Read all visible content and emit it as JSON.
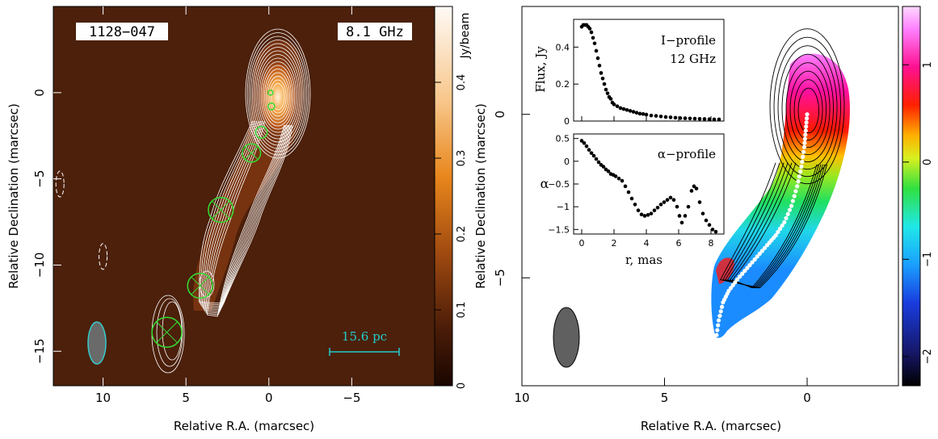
{
  "chart_data": [
    {
      "panel": "left",
      "type": "heatmap",
      "source_label": "1128−047",
      "frequency_label": "8.1 GHz",
      "xlabel": "Relative R.A. (marcsec)",
      "ylabel": "Relative Declination (marcsec)",
      "xlim": [
        13,
        -10
      ],
      "ylim": [
        -17,
        5
      ],
      "xticks": [
        10,
        5,
        0,
        -5
      ],
      "xtick_labels": [
        "10",
        "5",
        "0",
        "−5"
      ],
      "yticks": [
        0,
        -5,
        -10,
        -15
      ],
      "ytick_labels": [
        "0",
        "−5",
        "−10",
        "−15"
      ],
      "colorbar": {
        "label": "Jy/beam",
        "range": [
          0,
          0.5
        ],
        "ticks": [
          0,
          0.1,
          0.2,
          0.3,
          0.4
        ],
        "tick_labels": [
          "0",
          "0.1",
          "0.2",
          "0.3",
          "0.4"
        ],
        "colormap": "dark-brown-to-orange-to-white"
      },
      "scale_bar_label": "15.6 pc",
      "colors": {
        "contours": "#ffffff",
        "components": "#33dd33",
        "beam": "#33cccc",
        "scale_bar": "#22cccc"
      },
      "ridge": [
        {
          "x": 0.2,
          "y": 0.3
        },
        {
          "x": 0.5,
          "y": -1.8
        },
        {
          "x": 1.1,
          "y": -3.6
        },
        {
          "x": 2.2,
          "y": -5.6
        },
        {
          "x": 3.0,
          "y": -7.2
        },
        {
          "x": 3.6,
          "y": -9.0
        },
        {
          "x": 4.0,
          "y": -10.6
        },
        {
          "x": 4.2,
          "y": -11.6
        }
      ],
      "components": [
        {
          "x": -0.1,
          "y": 0.0,
          "r": 0.15
        },
        {
          "x": -0.15,
          "y": -0.8,
          "r": 0.2
        },
        {
          "x": 0.45,
          "y": -2.3,
          "r": 0.35
        },
        {
          "x": 1.05,
          "y": -3.5,
          "r": 0.55
        },
        {
          "x": 2.9,
          "y": -6.8,
          "r": 0.75
        },
        {
          "x": 4.15,
          "y": -11.2,
          "r": 0.75
        },
        {
          "x": 6.15,
          "y": -13.9,
          "r": 0.9
        }
      ],
      "negative_contours": [
        {
          "x": 12.6,
          "y": -5.3
        },
        {
          "x": 10.0,
          "y": -9.5
        }
      ]
    },
    {
      "panel": "right",
      "type": "heatmap",
      "xlabel": "Relative R.A. (marcsec)",
      "ylabel": "",
      "xlim": [
        10,
        -3.2
      ],
      "ylim": [
        -8.3,
        3.3
      ],
      "xticks": [
        10,
        5,
        0
      ],
      "xtick_labels": [
        "10",
        "5",
        "0"
      ],
      "yticks": [
        0,
        -5
      ],
      "ytick_labels": [
        "0",
        "−5"
      ],
      "colorbar": {
        "label": "",
        "range": [
          -2.3,
          1.6
        ],
        "ticks": [
          -2,
          -1,
          0,
          1
        ],
        "tick_labels": [
          "−2",
          "−1",
          "0",
          "1"
        ],
        "colormap": "spectral-index-rainbow"
      },
      "ridge_points": [
        [
          0,
          0
        ],
        [
          0.05,
          -0.5
        ],
        [
          0.1,
          -1
        ],
        [
          0.2,
          -1.6
        ],
        [
          0.35,
          -2.2
        ],
        [
          0.55,
          -2.8
        ],
        [
          0.8,
          -3.3
        ],
        [
          1.1,
          -3.7
        ],
        [
          1.4,
          -4.0
        ],
        [
          1.75,
          -4.35
        ],
        [
          2.1,
          -4.7
        ],
        [
          2.45,
          -5.05
        ],
        [
          2.75,
          -5.4
        ],
        [
          2.95,
          -5.75
        ],
        [
          3.1,
          -6.3
        ],
        [
          3.2,
          -6.9
        ],
        [
          3.3,
          -7.5
        ]
      ],
      "insets": [
        {
          "type": "scatter",
          "title_lines": [
            "I−profile",
            "12 GHz"
          ],
          "ylabel": "Flux, Jy",
          "xlabel": "",
          "xlim": [
            -0.5,
            8.8
          ],
          "ylim": [
            0,
            0.55
          ],
          "yticks": [
            0,
            0.2,
            0.4
          ],
          "ytick_labels": [
            "0",
            "0.2",
            "0.4"
          ],
          "x": [
            0,
            0.1,
            0.2,
            0.3,
            0.4,
            0.5,
            0.6,
            0.7,
            0.8,
            0.9,
            1.0,
            1.1,
            1.2,
            1.3,
            1.4,
            1.5,
            1.6,
            1.7,
            1.8,
            1.9,
            2.0,
            2.2,
            2.4,
            2.6,
            2.8,
            3.0,
            3.2,
            3.4,
            3.6,
            3.8,
            4.0,
            4.3,
            4.6,
            4.9,
            5.2,
            5.5,
            5.8,
            6.1,
            6.4,
            6.7,
            7.0,
            7.3,
            7.6,
            7.9,
            8.2,
            8.5
          ],
          "y": [
            0.51,
            0.52,
            0.52,
            0.52,
            0.51,
            0.5,
            0.48,
            0.45,
            0.42,
            0.38,
            0.34,
            0.3,
            0.26,
            0.23,
            0.2,
            0.17,
            0.15,
            0.13,
            0.12,
            0.1,
            0.09,
            0.08,
            0.07,
            0.065,
            0.06,
            0.055,
            0.05,
            0.045,
            0.04,
            0.038,
            0.035,
            0.03,
            0.028,
            0.025,
            0.022,
            0.02,
            0.018,
            0.016,
            0.015,
            0.014,
            0.013,
            0.012,
            0.011,
            0.01,
            0.009,
            0.009
          ]
        },
        {
          "type": "scatter",
          "title_lines": [
            "α−profile"
          ],
          "ylabel": "α",
          "xlabel": "r, mas",
          "xlim": [
            -0.5,
            8.8
          ],
          "ylim": [
            -1.6,
            0.6
          ],
          "xticks": [
            0,
            2,
            4,
            6,
            8
          ],
          "xtick_labels": [
            "0",
            "2",
            "4",
            "6",
            "8"
          ],
          "yticks": [
            0.5,
            0,
            -0.5,
            -1,
            -1.5
          ],
          "ytick_labels": [
            "0.5",
            "0",
            "−0.5",
            "−1",
            "−1.5"
          ],
          "x": [
            0,
            0.15,
            0.3,
            0.45,
            0.6,
            0.75,
            0.9,
            1.05,
            1.2,
            1.35,
            1.5,
            1.65,
            1.8,
            1.95,
            2.1,
            2.3,
            2.5,
            2.7,
            2.9,
            3.1,
            3.3,
            3.5,
            3.7,
            3.9,
            4.1,
            4.3,
            4.5,
            4.7,
            4.9,
            5.1,
            5.3,
            5.5,
            5.7,
            5.9,
            6.05,
            6.2,
            6.4,
            6.6,
            6.8,
            6.95,
            7.1,
            7.3,
            7.5,
            7.7,
            7.9,
            8.1,
            8.3
          ],
          "y": [
            0.45,
            0.4,
            0.33,
            0.25,
            0.18,
            0.12,
            0.05,
            -0.02,
            -0.08,
            -0.12,
            -0.18,
            -0.22,
            -0.28,
            -0.3,
            -0.33,
            -0.38,
            -0.43,
            -0.55,
            -0.68,
            -0.82,
            -0.95,
            -1.08,
            -1.17,
            -1.2,
            -1.18,
            -1.15,
            -1.08,
            -1.02,
            -0.95,
            -0.9,
            -0.85,
            -0.8,
            -0.85,
            -1.0,
            -1.2,
            -1.35,
            -1.2,
            -1.0,
            -0.65,
            -0.55,
            -0.6,
            -0.9,
            -1.15,
            -1.3,
            -1.4,
            -1.5,
            -1.55
          ]
        }
      ]
    }
  ]
}
